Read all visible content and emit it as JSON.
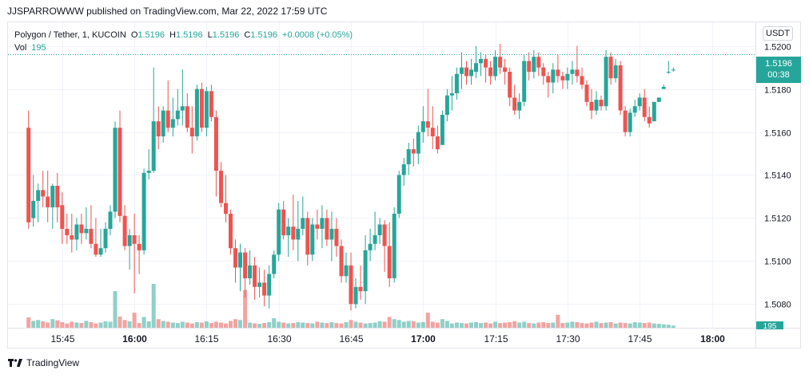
{
  "header": {
    "publisher": "JJSPARROWWW published on TradingView.com, Mar 22, 2022 17:59 UTC"
  },
  "legend": {
    "symbol": "Polygon / Tether, 1, KUCOIN",
    "o_label": "O",
    "o_value": "1.5196",
    "h_label": "H",
    "h_value": "1.5196",
    "l_label": "L",
    "l_value": "1.5196",
    "c_label": "C",
    "c_value": "1.5196",
    "change": "+0.0008 (+0.05%)",
    "vol_label": "Vol",
    "vol_value": "195"
  },
  "currency_button": "USDT",
  "last_price": {
    "price": "1.5196",
    "countdown": "00:38"
  },
  "volume_tag": "195",
  "footer": {
    "brand": "TradingView"
  },
  "colors": {
    "up": "#26a69a",
    "down": "#ef5350",
    "up_volume": "#8fd0c8",
    "down_volume": "#f3a3a1",
    "grid": "#f0f3fa",
    "text": "#131722"
  },
  "chart_data": {
    "type": "candlestick",
    "title": "Polygon / Tether, 1, KUCOIN",
    "x_ticks": [
      "15:45",
      "16:00",
      "16:15",
      "16:30",
      "16:45",
      "17:00",
      "17:15",
      "17:30",
      "17:45",
      "18:00"
    ],
    "x_tick_minutes": [
      -60,
      -45,
      -30,
      -15,
      0,
      15,
      30,
      45,
      60,
      75
    ],
    "y_ticks": [
      "1.5080",
      "1.5100",
      "1.5120",
      "1.5140",
      "1.5160",
      "1.5180",
      "1.5200"
    ],
    "ylim": [
      1.5069,
      1.5211
    ],
    "grid": true,
    "last_price_line": 1.5196,
    "candles": {
      "fields": [
        "minutes_from_16:45",
        "open",
        "high",
        "low",
        "close",
        "volume"
      ],
      "rows": [
        [
          -67,
          1.5162,
          1.517,
          1.5115,
          1.5118,
          24
        ],
        [
          -66,
          1.512,
          1.514,
          1.5116,
          1.5128,
          16
        ],
        [
          -65,
          1.5128,
          1.5136,
          1.5118,
          1.5133,
          18
        ],
        [
          -64,
          1.5133,
          1.5142,
          1.5125,
          1.513,
          15
        ],
        [
          -63,
          1.513,
          1.5142,
          1.5118,
          1.5125,
          12
        ],
        [
          -62,
          1.5125,
          1.5136,
          1.5115,
          1.5135,
          20
        ],
        [
          -61,
          1.5135,
          1.5141,
          1.5118,
          1.5125,
          17
        ],
        [
          -60,
          1.5126,
          1.5132,
          1.5108,
          1.5115,
          13
        ],
        [
          -59,
          1.5115,
          1.5122,
          1.5108,
          1.5112,
          10
        ],
        [
          -58,
          1.5112,
          1.5122,
          1.5104,
          1.511,
          14
        ],
        [
          -57,
          1.511,
          1.512,
          1.5105,
          1.5117,
          12
        ],
        [
          -56,
          1.5117,
          1.5122,
          1.5108,
          1.5113,
          11
        ],
        [
          -55,
          1.5113,
          1.5125,
          1.511,
          1.5115,
          16
        ],
        [
          -54,
          1.5115,
          1.5126,
          1.5106,
          1.5108,
          13
        ],
        [
          -53,
          1.5108,
          1.512,
          1.5102,
          1.5103,
          10
        ],
        [
          -52,
          1.5103,
          1.5115,
          1.5102,
          1.5106,
          12
        ],
        [
          -51,
          1.5106,
          1.5118,
          1.5104,
          1.5115,
          15
        ],
        [
          -50,
          1.5115,
          1.5126,
          1.5112,
          1.5123,
          14
        ],
        [
          -49,
          1.5123,
          1.5165,
          1.512,
          1.5162,
          85
        ],
        [
          -48,
          1.5162,
          1.517,
          1.5118,
          1.5121,
          26
        ],
        [
          -47,
          1.5121,
          1.5126,
          1.5105,
          1.5107,
          18
        ],
        [
          -46,
          1.5107,
          1.5115,
          1.5096,
          1.5112,
          15
        ],
        [
          -45,
          1.5112,
          1.5122,
          1.5085,
          1.5108,
          35
        ],
        [
          -44,
          1.5108,
          1.5112,
          1.5094,
          1.5105,
          11
        ],
        [
          -43,
          1.5105,
          1.5143,
          1.5103,
          1.5141,
          25
        ],
        [
          -42,
          1.5141,
          1.5152,
          1.5138,
          1.5142,
          15
        ],
        [
          -41,
          1.5142,
          1.519,
          1.5141,
          1.5165,
          102
        ],
        [
          -40,
          1.5165,
          1.5172,
          1.5152,
          1.5158,
          20
        ],
        [
          -39,
          1.5158,
          1.5172,
          1.5155,
          1.517,
          16
        ],
        [
          -38,
          1.517,
          1.5184,
          1.516,
          1.5162,
          14
        ],
        [
          -37,
          1.5162,
          1.5176,
          1.5158,
          1.5166,
          12
        ],
        [
          -36,
          1.5166,
          1.518,
          1.5163,
          1.517,
          11
        ],
        [
          -35,
          1.517,
          1.5189,
          1.5163,
          1.5172,
          14
        ],
        [
          -34,
          1.5172,
          1.5178,
          1.516,
          1.5162,
          12
        ],
        [
          -33,
          1.5162,
          1.5172,
          1.515,
          1.5158,
          10
        ],
        [
          -32,
          1.5158,
          1.5182,
          1.5156,
          1.518,
          13
        ],
        [
          -31,
          1.518,
          1.5183,
          1.516,
          1.5162,
          12
        ],
        [
          -30,
          1.5162,
          1.5181,
          1.5158,
          1.5179,
          15
        ],
        [
          -29,
          1.5179,
          1.5182,
          1.5165,
          1.5167,
          11
        ],
        [
          -28,
          1.5167,
          1.517,
          1.513,
          1.5142,
          14
        ],
        [
          -27,
          1.5142,
          1.5146,
          1.5125,
          1.5127,
          12
        ],
        [
          -26,
          1.5127,
          1.514,
          1.5118,
          1.5122,
          10
        ],
        [
          -25,
          1.5122,
          1.5124,
          1.5103,
          1.5106,
          16
        ],
        [
          -24,
          1.5106,
          1.511,
          1.509,
          1.5097,
          20
        ],
        [
          -23,
          1.5097,
          1.5108,
          1.5086,
          1.5104,
          18
        ],
        [
          -22,
          1.5104,
          1.5106,
          1.5083,
          1.5092,
          88
        ],
        [
          -21,
          1.5092,
          1.5105,
          1.5089,
          1.5098,
          12
        ],
        [
          -20,
          1.5098,
          1.5102,
          1.5082,
          1.5088,
          10
        ],
        [
          -19,
          1.5088,
          1.5097,
          1.5083,
          1.509,
          9
        ],
        [
          -18,
          1.509,
          1.5096,
          1.5079,
          1.5084,
          11
        ],
        [
          -17,
          1.5084,
          1.5098,
          1.5078,
          1.5094,
          13
        ],
        [
          -16,
          1.5094,
          1.5105,
          1.5092,
          1.5103,
          22
        ],
        [
          -15,
          1.5103,
          1.5127,
          1.51,
          1.5124,
          14
        ],
        [
          -14,
          1.5124,
          1.5128,
          1.511,
          1.5112,
          12
        ],
        [
          -13,
          1.5112,
          1.512,
          1.5102,
          1.5116,
          10
        ],
        [
          -12,
          1.5116,
          1.5131,
          1.5105,
          1.511,
          11
        ],
        [
          -11,
          1.511,
          1.5128,
          1.51,
          1.5115,
          13
        ],
        [
          -10,
          1.5115,
          1.513,
          1.5112,
          1.512,
          12
        ],
        [
          -9,
          1.512,
          1.5123,
          1.5098,
          1.5103,
          11
        ],
        [
          -8,
          1.5103,
          1.512,
          1.51,
          1.5117,
          10
        ],
        [
          -7,
          1.5117,
          1.5124,
          1.511,
          1.5115,
          14
        ],
        [
          -6,
          1.5115,
          1.5126,
          1.5106,
          1.512,
          12
        ],
        [
          -5,
          1.512,
          1.5124,
          1.5107,
          1.511,
          11
        ],
        [
          -4,
          1.511,
          1.5123,
          1.51,
          1.5115,
          13
        ],
        [
          -3,
          1.5115,
          1.512,
          1.5102,
          1.5107,
          11
        ],
        [
          -2,
          1.5107,
          1.511,
          1.509,
          1.5093,
          10
        ],
        [
          -1,
          1.5093,
          1.5104,
          1.509,
          1.5098,
          13
        ],
        [
          0,
          1.5098,
          1.5104,
          1.5077,
          1.508,
          18
        ],
        [
          1,
          1.508,
          1.5092,
          1.5078,
          1.5088,
          14
        ],
        [
          2,
          1.5088,
          1.5098,
          1.5082,
          1.5086,
          12
        ],
        [
          3,
          1.5086,
          1.5112,
          1.508,
          1.5105,
          10
        ],
        [
          4,
          1.5105,
          1.5115,
          1.51,
          1.5108,
          11
        ],
        [
          5,
          1.5108,
          1.5123,
          1.5105,
          1.5112,
          12
        ],
        [
          6,
          1.5112,
          1.512,
          1.5108,
          1.5117,
          15
        ],
        [
          7,
          1.5117,
          1.5119,
          1.5095,
          1.5107,
          14
        ],
        [
          8,
          1.5107,
          1.5118,
          1.5088,
          1.5092,
          25
        ],
        [
          9,
          1.5092,
          1.5125,
          1.509,
          1.5122,
          20
        ],
        [
          10,
          1.5122,
          1.5142,
          1.512,
          1.514,
          18
        ],
        [
          11,
          1.514,
          1.5148,
          1.5135,
          1.5145,
          14
        ],
        [
          12,
          1.5145,
          1.5155,
          1.514,
          1.5152,
          16
        ],
        [
          13,
          1.5152,
          1.5157,
          1.5144,
          1.515,
          15
        ],
        [
          14,
          1.515,
          1.5163,
          1.5145,
          1.516,
          12
        ],
        [
          15,
          1.516,
          1.5172,
          1.5155,
          1.5165,
          13
        ],
        [
          16,
          1.5165,
          1.518,
          1.5158,
          1.5162,
          35
        ],
        [
          17,
          1.5162,
          1.5172,
          1.5152,
          1.5158,
          14
        ],
        [
          18,
          1.5158,
          1.5163,
          1.515,
          1.5152,
          12
        ],
        [
          19,
          1.5154,
          1.517,
          1.5154,
          1.5168,
          20
        ],
        [
          20,
          1.5168,
          1.518,
          1.5165,
          1.5177,
          16
        ],
        [
          21,
          1.5177,
          1.5186,
          1.517,
          1.5178,
          10
        ],
        [
          22,
          1.5178,
          1.519,
          1.5175,
          1.5187,
          12
        ],
        [
          23,
          1.5187,
          1.5197,
          1.518,
          1.519,
          11
        ],
        [
          24,
          1.519,
          1.5193,
          1.5182,
          1.5186,
          10
        ],
        [
          25,
          1.5186,
          1.5194,
          1.5182,
          1.5189,
          12
        ],
        [
          26,
          1.5188,
          1.52,
          1.5185,
          1.5192,
          13
        ],
        [
          27,
          1.5192,
          1.5197,
          1.5186,
          1.5194,
          11
        ],
        [
          28,
          1.5194,
          1.5196,
          1.5183,
          1.519,
          12
        ],
        [
          29,
          1.519,
          1.5193,
          1.5182,
          1.5186,
          10
        ],
        [
          30,
          1.5186,
          1.5198,
          1.5184,
          1.5195,
          14
        ],
        [
          31,
          1.5195,
          1.5201,
          1.5187,
          1.519,
          11
        ],
        [
          32,
          1.519,
          1.5194,
          1.5182,
          1.5188,
          12
        ],
        [
          33,
          1.5188,
          1.519,
          1.5172,
          1.5176,
          13
        ],
        [
          34,
          1.5176,
          1.5182,
          1.5168,
          1.517,
          15
        ],
        [
          35,
          1.517,
          1.5178,
          1.5166,
          1.5174,
          12
        ],
        [
          36,
          1.5174,
          1.5196,
          1.5172,
          1.5193,
          14
        ],
        [
          37,
          1.5193,
          1.5197,
          1.5184,
          1.5188,
          11
        ],
        [
          38,
          1.5188,
          1.5198,
          1.5185,
          1.5195,
          10
        ],
        [
          39,
          1.5195,
          1.5197,
          1.5186,
          1.519,
          12
        ],
        [
          40,
          1.519,
          1.5192,
          1.5182,
          1.5186,
          13
        ],
        [
          41,
          1.5186,
          1.5188,
          1.5176,
          1.5183,
          11
        ],
        [
          42,
          1.5183,
          1.5192,
          1.5178,
          1.5189,
          12
        ],
        [
          43,
          1.5189,
          1.5196,
          1.5183,
          1.5186,
          30
        ],
        [
          44,
          1.5186,
          1.5188,
          1.518,
          1.5184,
          11
        ],
        [
          45,
          1.5184,
          1.519,
          1.518,
          1.5187,
          12
        ],
        [
          46,
          1.5187,
          1.5193,
          1.5182,
          1.5189,
          14
        ],
        [
          47,
          1.5189,
          1.52,
          1.5183,
          1.5186,
          13
        ],
        [
          48,
          1.5186,
          1.519,
          1.518,
          1.5182,
          11
        ],
        [
          49,
          1.5182,
          1.5184,
          1.5172,
          1.5174,
          10
        ],
        [
          50,
          1.5174,
          1.518,
          1.5166,
          1.517,
          12
        ],
        [
          51,
          1.517,
          1.5179,
          1.5168,
          1.5175,
          14
        ],
        [
          52,
          1.5175,
          1.5177,
          1.517,
          1.5172,
          11
        ],
        [
          53,
          1.5172,
          1.5198,
          1.517,
          1.5195,
          12
        ],
        [
          54,
          1.5195,
          1.5197,
          1.5182,
          1.5185,
          13
        ],
        [
          55,
          1.5185,
          1.5194,
          1.5183,
          1.5191,
          10
        ],
        [
          56,
          1.5191,
          1.5193,
          1.5168,
          1.517,
          12
        ],
        [
          57,
          1.517,
          1.5172,
          1.5158,
          1.516,
          11
        ],
        [
          58,
          1.516,
          1.5171,
          1.5158,
          1.5169,
          10
        ],
        [
          59,
          1.5169,
          1.5175,
          1.5167,
          1.5172,
          13
        ],
        [
          60,
          1.5172,
          1.5178,
          1.517,
          1.5176,
          12
        ],
        [
          61,
          1.5176,
          1.518,
          1.5165,
          1.5167,
          11
        ],
        [
          62,
          1.5167,
          1.5172,
          1.5162,
          1.5164,
          12
        ],
        [
          63,
          1.5165,
          1.5174,
          1.5165,
          1.5174,
          10
        ],
        [
          64,
          1.5174,
          1.5176,
          1.5174,
          1.5176,
          9
        ],
        [
          65,
          1.518,
          1.5182,
          1.518,
          1.5181,
          8
        ],
        [
          66,
          1.5188,
          1.5193,
          1.5187,
          1.5188,
          7
        ],
        [
          67,
          1.5189,
          1.519,
          1.5188,
          1.5189,
          5
        ]
      ]
    }
  }
}
